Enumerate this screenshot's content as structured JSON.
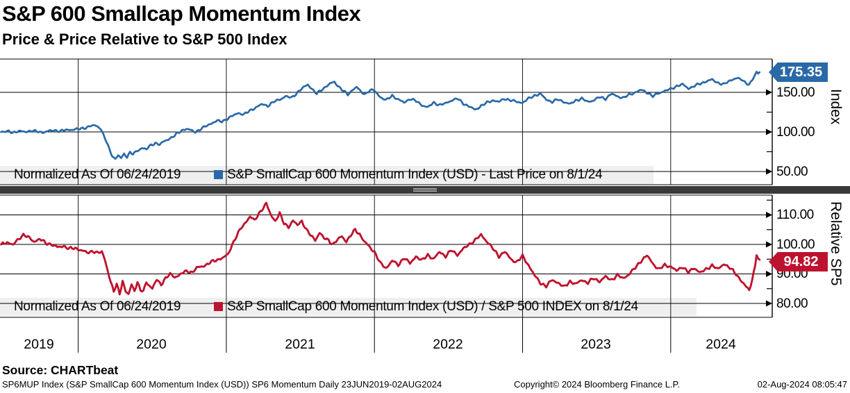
{
  "header": {
    "title": "S&P 600 Smallcap Momentum Index",
    "subtitle": "Price & Price Relative to S&P 500 Index"
  },
  "top_panel": {
    "axis_title": "Index",
    "last_price": "175.35",
    "legend": {
      "normalized": "Normalized As Of 06/24/2019",
      "series_label": "S&P SmallCap 600 Momentum Index (USD) - Last Price on 8/1/24"
    },
    "ticks": [
      {
        "label": "150.00",
        "value": 150
      },
      {
        "label": "100.00",
        "value": 100
      },
      {
        "label": "50.00",
        "value": 50
      }
    ],
    "minor_ticks": [
      125,
      75
    ]
  },
  "bottom_panel": {
    "axis_title": "Relative SP5",
    "last_price": "94.82",
    "legend": {
      "normalized": "Normalized As Of 06/24/2019",
      "series_label": "S&P SmallCap 600 Momentum Index (USD) / S&P 500 INDEX on 8/1/24"
    },
    "ticks": [
      {
        "label": "110.00",
        "value": 110
      },
      {
        "label": "100.00",
        "value": 100
      },
      {
        "label": "90.00",
        "value": 90
      },
      {
        "label": "80.00",
        "value": 80
      }
    ],
    "minor_ticks": [
      115,
      105,
      95,
      85
    ]
  },
  "x_axis": {
    "years": [
      "2019",
      "2020",
      "2021",
      "2022",
      "2023",
      "2024"
    ],
    "year_gridlines": [
      2020,
      2021,
      2022,
      2023,
      2024
    ]
  },
  "footer": {
    "source": "Source: CHARTbeat",
    "descriptor": "SP6MUP Index (S&P SmallCap 600 Momentum Index (USD)) SP6 Momentum  Daily 23JUN2019-02AUG2024",
    "copyright": "Copyright© 2024 Bloomberg Finance L.P.",
    "timestamp": "02-Aug-2024 08:05:47"
  },
  "colors": {
    "blue_series": "#2A69A8",
    "red_series": "#BE132F",
    "legend_band": "#efefef",
    "separator": "#3a3a3a",
    "grid": "#000000"
  },
  "chart_data": [
    {
      "type": "line",
      "name": "S&P SmallCap 600 Momentum Index (USD), normalized 06/24/2019 = 100",
      "color": "#2A69A8",
      "x_range": [
        2019.477,
        2024.6
      ],
      "ylim": [
        34,
        192
      ],
      "yticks": [
        50,
        100,
        150
      ],
      "last_value": 175.35,
      "points": [
        [
          2019.48,
          100
        ],
        [
          2019.52,
          100.5
        ],
        [
          2019.56,
          99.5
        ],
        [
          2019.6,
          101
        ],
        [
          2019.64,
          100
        ],
        [
          2019.68,
          101.5
        ],
        [
          2019.72,
          100.5
        ],
        [
          2019.76,
          99.5
        ],
        [
          2019.8,
          101
        ],
        [
          2019.84,
          102
        ],
        [
          2019.88,
          101
        ],
        [
          2019.92,
          102.5
        ],
        [
          2019.96,
          103
        ],
        [
          2020.0,
          103.5
        ],
        [
          2020.04,
          105
        ],
        [
          2020.08,
          107
        ],
        [
          2020.11,
          108.5
        ],
        [
          2020.13,
          107
        ],
        [
          2020.15,
          105
        ],
        [
          2020.17,
          96
        ],
        [
          2020.19,
          88
        ],
        [
          2020.21,
          78
        ],
        [
          2020.23,
          70
        ],
        [
          2020.25,
          66
        ],
        [
          2020.27,
          70
        ],
        [
          2020.29,
          67
        ],
        [
          2020.31,
          72
        ],
        [
          2020.33,
          69
        ],
        [
          2020.35,
          74
        ],
        [
          2020.37,
          72
        ],
        [
          2020.4,
          76
        ],
        [
          2020.43,
          80
        ],
        [
          2020.46,
          78
        ],
        [
          2020.49,
          83
        ],
        [
          2020.52,
          86
        ],
        [
          2020.55,
          84
        ],
        [
          2020.58,
          88
        ],
        [
          2020.61,
          91
        ],
        [
          2020.64,
          94
        ],
        [
          2020.67,
          98
        ],
        [
          2020.7,
          102
        ],
        [
          2020.73,
          104
        ],
        [
          2020.76,
          102
        ],
        [
          2020.79,
          100
        ],
        [
          2020.82,
          103
        ],
        [
          2020.85,
          106
        ],
        [
          2020.88,
          109
        ],
        [
          2020.91,
          112
        ],
        [
          2020.94,
          114
        ],
        [
          2020.97,
          113
        ],
        [
          2021.0,
          116
        ],
        [
          2021.04,
          120
        ],
        [
          2021.08,
          124
        ],
        [
          2021.12,
          122
        ],
        [
          2021.16,
          127
        ],
        [
          2021.2,
          131
        ],
        [
          2021.24,
          135
        ],
        [
          2021.28,
          133
        ],
        [
          2021.32,
          138
        ],
        [
          2021.36,
          141
        ],
        [
          2021.4,
          145
        ],
        [
          2021.44,
          143
        ],
        [
          2021.48,
          150
        ],
        [
          2021.52,
          156
        ],
        [
          2021.55,
          160
        ],
        [
          2021.58,
          154
        ],
        [
          2021.61,
          148
        ],
        [
          2021.64,
          153
        ],
        [
          2021.67,
          157
        ],
        [
          2021.7,
          161
        ],
        [
          2021.73,
          163
        ],
        [
          2021.76,
          157
        ],
        [
          2021.79,
          152
        ],
        [
          2021.82,
          147
        ],
        [
          2021.85,
          153
        ],
        [
          2021.88,
          157
        ],
        [
          2021.91,
          150
        ],
        [
          2021.94,
          148
        ],
        [
          2021.97,
          153
        ],
        [
          2022.0,
          152
        ],
        [
          2022.04,
          144
        ],
        [
          2022.08,
          140
        ],
        [
          2022.12,
          146
        ],
        [
          2022.16,
          141
        ],
        [
          2022.2,
          137
        ],
        [
          2022.24,
          142
        ],
        [
          2022.28,
          139
        ],
        [
          2022.32,
          134
        ],
        [
          2022.36,
          131
        ],
        [
          2022.4,
          137
        ],
        [
          2022.44,
          134
        ],
        [
          2022.48,
          136
        ],
        [
          2022.52,
          140
        ],
        [
          2022.56,
          142
        ],
        [
          2022.6,
          136
        ],
        [
          2022.64,
          132
        ],
        [
          2022.68,
          128
        ],
        [
          2022.72,
          133
        ],
        [
          2022.76,
          137
        ],
        [
          2022.8,
          140
        ],
        [
          2022.84,
          138
        ],
        [
          2022.88,
          142
        ],
        [
          2022.92,
          140
        ],
        [
          2022.96,
          138
        ],
        [
          2023.0,
          137
        ],
        [
          2023.04,
          142
        ],
        [
          2023.08,
          146
        ],
        [
          2023.12,
          148
        ],
        [
          2023.16,
          141
        ],
        [
          2023.2,
          138
        ],
        [
          2023.24,
          141
        ],
        [
          2023.28,
          138
        ],
        [
          2023.32,
          135
        ],
        [
          2023.36,
          140
        ],
        [
          2023.4,
          142
        ],
        [
          2023.44,
          138
        ],
        [
          2023.48,
          140
        ],
        [
          2023.52,
          144
        ],
        [
          2023.56,
          142
        ],
        [
          2023.6,
          148
        ],
        [
          2023.64,
          145
        ],
        [
          2023.68,
          143
        ],
        [
          2023.72,
          147
        ],
        [
          2023.76,
          150
        ],
        [
          2023.8,
          153
        ],
        [
          2023.84,
          150
        ],
        [
          2023.88,
          145
        ],
        [
          2023.92,
          149
        ],
        [
          2023.96,
          152
        ],
        [
          2024.0,
          154
        ],
        [
          2024.04,
          158
        ],
        [
          2024.08,
          160
        ],
        [
          2024.12,
          155
        ],
        [
          2024.16,
          158
        ],
        [
          2024.2,
          161
        ],
        [
          2024.24,
          164
        ],
        [
          2024.28,
          166
        ],
        [
          2024.32,
          162
        ],
        [
          2024.36,
          160
        ],
        [
          2024.4,
          165
        ],
        [
          2024.44,
          168
        ],
        [
          2024.48,
          166
        ],
        [
          2024.5,
          163
        ],
        [
          2024.53,
          160
        ],
        [
          2024.55,
          165
        ],
        [
          2024.57,
          172
        ],
        [
          2024.58,
          176
        ],
        [
          2024.59,
          174
        ],
        [
          2024.6,
          175.35
        ]
      ]
    },
    {
      "type": "line",
      "name": "S&P SmallCap 600 Momentum Index (USD) / S&P 500 INDEX, normalized 06/24/2019 = 100",
      "color": "#BE132F",
      "x_range": [
        2019.477,
        2024.6
      ],
      "ylim": [
        75.5,
        116.5
      ],
      "yticks": [
        80,
        90,
        100,
        110
      ],
      "last_value": 94.82,
      "points": [
        [
          2019.48,
          100
        ],
        [
          2019.52,
          100.8
        ],
        [
          2019.56,
          99.8
        ],
        [
          2019.6,
          102
        ],
        [
          2019.63,
          103.3
        ],
        [
          2019.66,
          102.5
        ],
        [
          2019.7,
          101
        ],
        [
          2019.74,
          101.8
        ],
        [
          2019.78,
          100.5
        ],
        [
          2019.82,
          100
        ],
        [
          2019.86,
          99
        ],
        [
          2019.9,
          99.5
        ],
        [
          2019.94,
          98.5
        ],
        [
          2019.98,
          98.8
        ],
        [
          2020.02,
          98
        ],
        [
          2020.06,
          97.2
        ],
        [
          2020.1,
          97.8
        ],
        [
          2020.13,
          97
        ],
        [
          2020.16,
          97.5
        ],
        [
          2020.18,
          95
        ],
        [
          2020.2,
          91
        ],
        [
          2020.22,
          87
        ],
        [
          2020.24,
          84
        ],
        [
          2020.26,
          86.5
        ],
        [
          2020.28,
          83.5
        ],
        [
          2020.3,
          87.5
        ],
        [
          2020.32,
          84
        ],
        [
          2020.34,
          83
        ],
        [
          2020.36,
          86.5
        ],
        [
          2020.38,
          84.5
        ],
        [
          2020.4,
          87
        ],
        [
          2020.42,
          84.5
        ],
        [
          2020.44,
          84
        ],
        [
          2020.46,
          87.5
        ],
        [
          2020.48,
          86
        ],
        [
          2020.5,
          85
        ],
        [
          2020.53,
          88
        ],
        [
          2020.56,
          86.5
        ],
        [
          2020.59,
          88.5
        ],
        [
          2020.62,
          89.9
        ],
        [
          2020.65,
          89
        ],
        [
          2020.68,
          89.5
        ],
        [
          2020.71,
          90.5
        ],
        [
          2020.74,
          91
        ],
        [
          2020.77,
          90.5
        ],
        [
          2020.8,
          92
        ],
        [
          2020.83,
          92.5
        ],
        [
          2020.86,
          93
        ],
        [
          2020.89,
          93.8
        ],
        [
          2020.92,
          94.5
        ],
        [
          2020.95,
          95
        ],
        [
          2020.98,
          95.5
        ],
        [
          2021.01,
          96.5
        ],
        [
          2021.04,
          100
        ],
        [
          2021.07,
          103
        ],
        [
          2021.1,
          105.5
        ],
        [
          2021.13,
          107.5
        ],
        [
          2021.16,
          109.5
        ],
        [
          2021.19,
          108
        ],
        [
          2021.22,
          110.5
        ],
        [
          2021.25,
          112.5
        ],
        [
          2021.27,
          113.8
        ],
        [
          2021.3,
          110
        ],
        [
          2021.33,
          108
        ],
        [
          2021.36,
          110.5
        ],
        [
          2021.39,
          107
        ],
        [
          2021.42,
          106
        ],
        [
          2021.45,
          108
        ],
        [
          2021.48,
          106.5
        ],
        [
          2021.51,
          108
        ],
        [
          2021.54,
          105
        ],
        [
          2021.57,
          103
        ],
        [
          2021.6,
          101.5
        ],
        [
          2021.63,
          104
        ],
        [
          2021.66,
          102
        ],
        [
          2021.69,
          101.5
        ],
        [
          2021.72,
          100
        ],
        [
          2021.75,
          101.5
        ],
        [
          2021.78,
          102.8
        ],
        [
          2021.81,
          101
        ],
        [
          2021.84,
          103
        ],
        [
          2021.87,
          105
        ],
        [
          2021.9,
          103.5
        ],
        [
          2021.93,
          101
        ],
        [
          2021.96,
          99.5
        ],
        [
          2022.0,
          97.5
        ],
        [
          2022.04,
          93.5
        ],
        [
          2022.08,
          92
        ],
        [
          2022.12,
          94.5
        ],
        [
          2022.16,
          93
        ],
        [
          2022.2,
          95.5
        ],
        [
          2022.24,
          93.5
        ],
        [
          2022.28,
          96
        ],
        [
          2022.32,
          94.5
        ],
        [
          2022.36,
          96.5
        ],
        [
          2022.4,
          95
        ],
        [
          2022.44,
          97.5
        ],
        [
          2022.48,
          96
        ],
        [
          2022.52,
          98
        ],
        [
          2022.56,
          96.5
        ],
        [
          2022.6,
          98.5
        ],
        [
          2022.64,
          100
        ],
        [
          2022.68,
          101.5
        ],
        [
          2022.72,
          103.2
        ],
        [
          2022.76,
          101
        ],
        [
          2022.8,
          98.5
        ],
        [
          2022.84,
          96
        ],
        [
          2022.88,
          97.5
        ],
        [
          2022.92,
          95
        ],
        [
          2022.96,
          94
        ],
        [
          2023.0,
          96
        ],
        [
          2023.04,
          93
        ],
        [
          2023.08,
          89.5
        ],
        [
          2023.12,
          87
        ],
        [
          2023.16,
          85.8
        ],
        [
          2023.2,
          88
        ],
        [
          2023.24,
          87
        ],
        [
          2023.28,
          85.5
        ],
        [
          2023.32,
          87.5
        ],
        [
          2023.36,
          86.5
        ],
        [
          2023.4,
          88
        ],
        [
          2023.44,
          87
        ],
        [
          2023.48,
          88.5
        ],
        [
          2023.52,
          87.5
        ],
        [
          2023.56,
          89
        ],
        [
          2023.6,
          88
        ],
        [
          2023.64,
          89.5
        ],
        [
          2023.68,
          88.5
        ],
        [
          2023.72,
          90
        ],
        [
          2023.76,
          92
        ],
        [
          2023.8,
          94.5
        ],
        [
          2023.84,
          96.2
        ],
        [
          2023.88,
          93.5
        ],
        [
          2023.92,
          91.5
        ],
        [
          2023.96,
          93
        ],
        [
          2024.0,
          92.5
        ],
        [
          2024.04,
          91
        ],
        [
          2024.08,
          92.5
        ],
        [
          2024.12,
          90.5
        ],
        [
          2024.16,
          92
        ],
        [
          2024.2,
          90.5
        ],
        [
          2024.24,
          91.5
        ],
        [
          2024.28,
          93
        ],
        [
          2024.32,
          91.5
        ],
        [
          2024.36,
          93.5
        ],
        [
          2024.4,
          92
        ],
        [
          2024.44,
          90
        ],
        [
          2024.48,
          87.5
        ],
        [
          2024.51,
          85.5
        ],
        [
          2024.53,
          84.5
        ],
        [
          2024.55,
          88
        ],
        [
          2024.57,
          93
        ],
        [
          2024.58,
          96.8
        ],
        [
          2024.59,
          95
        ],
        [
          2024.6,
          94.82
        ]
      ]
    }
  ]
}
